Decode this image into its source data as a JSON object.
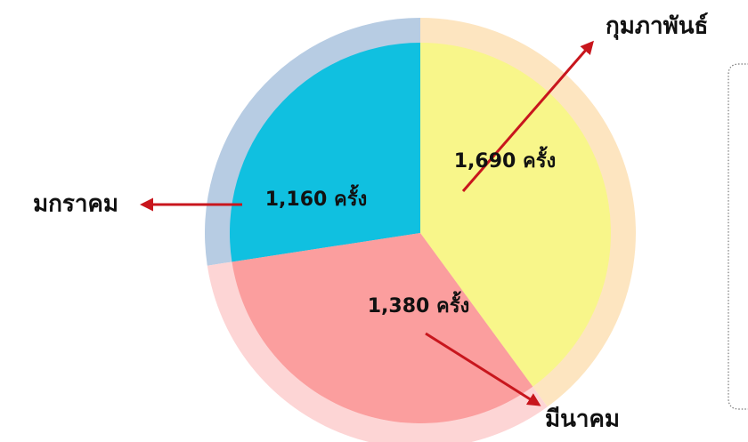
{
  "chart_data": {
    "type": "pie",
    "categories": [
      "มกราคม",
      "กุมภาพันธ์",
      "มีนาคม"
    ],
    "values": [
      1160,
      1690,
      1380
    ],
    "value_labels": [
      "1,160 ครั้ง",
      "1,690 ครั้ง",
      "1,380 ครั้ง"
    ],
    "colors": [
      "#10c0e0",
      "#f8f68a",
      "#fb9e9e"
    ],
    "ring_colors": [
      "#b7cce3",
      "#fde5c0",
      "#fdd5d5"
    ]
  }
}
